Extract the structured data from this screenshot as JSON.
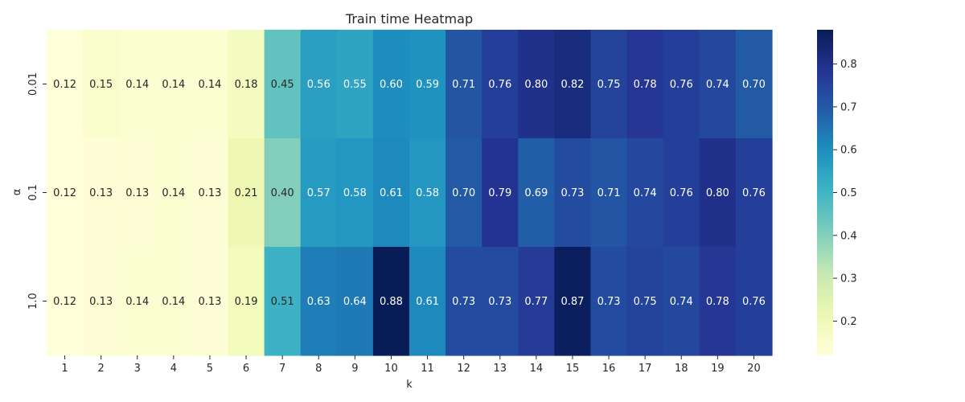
{
  "chart_data": {
    "type": "heatmap",
    "title": "Train time Heatmap",
    "xlabel": "k",
    "ylabel": "α",
    "x_categories": [
      "1",
      "2",
      "3",
      "4",
      "5",
      "6",
      "7",
      "8",
      "9",
      "10",
      "11",
      "12",
      "13",
      "14",
      "15",
      "16",
      "17",
      "18",
      "19",
      "20"
    ],
    "y_categories": [
      "0.01",
      "0.1",
      "1.0"
    ],
    "values": [
      [
        0.12,
        0.15,
        0.14,
        0.14,
        0.14,
        0.18,
        0.45,
        0.56,
        0.55,
        0.6,
        0.59,
        0.71,
        0.76,
        0.8,
        0.82,
        0.75,
        0.78,
        0.76,
        0.74,
        0.7
      ],
      [
        0.12,
        0.13,
        0.13,
        0.14,
        0.13,
        0.21,
        0.4,
        0.57,
        0.58,
        0.61,
        0.58,
        0.7,
        0.79,
        0.69,
        0.73,
        0.71,
        0.74,
        0.76,
        0.8,
        0.76
      ],
      [
        0.12,
        0.13,
        0.14,
        0.14,
        0.13,
        0.19,
        0.51,
        0.63,
        0.64,
        0.88,
        0.61,
        0.73,
        0.73,
        0.77,
        0.87,
        0.73,
        0.75,
        0.74,
        0.78,
        0.76
      ]
    ],
    "value_labels": [
      [
        "0.12",
        "0.15",
        "0.14",
        "0.14",
        "0.14",
        "0.18",
        "0.45",
        "0.56",
        "0.55",
        "0.60",
        "0.59",
        "0.71",
        "0.76",
        "0.80",
        "0.82",
        "0.75",
        "0.78",
        "0.76",
        "0.74",
        "0.70"
      ],
      [
        "0.12",
        "0.13",
        "0.13",
        "0.14",
        "0.13",
        "0.21",
        "0.40",
        "0.57",
        "0.58",
        "0.61",
        "0.58",
        "0.70",
        "0.79",
        "0.69",
        "0.73",
        "0.71",
        "0.74",
        "0.76",
        "0.80",
        "0.76"
      ],
      [
        "0.12",
        "0.13",
        "0.14",
        "0.14",
        "0.13",
        "0.19",
        "0.51",
        "0.63",
        "0.64",
        "0.88",
        "0.61",
        "0.73",
        "0.73",
        "0.77",
        "0.87",
        "0.73",
        "0.75",
        "0.74",
        "0.78",
        "0.76"
      ]
    ],
    "colormap": "YlGnBu",
    "vmin": 0.12,
    "vmax": 0.88,
    "colorbar_ticks": [
      0.2,
      0.3,
      0.4,
      0.5,
      0.6,
      0.7,
      0.8
    ],
    "colorbar_tick_labels": [
      "0.2",
      "0.3",
      "0.4",
      "0.5",
      "0.6",
      "0.7",
      "0.8"
    ],
    "grid": false,
    "legend": "colorbar-right"
  }
}
